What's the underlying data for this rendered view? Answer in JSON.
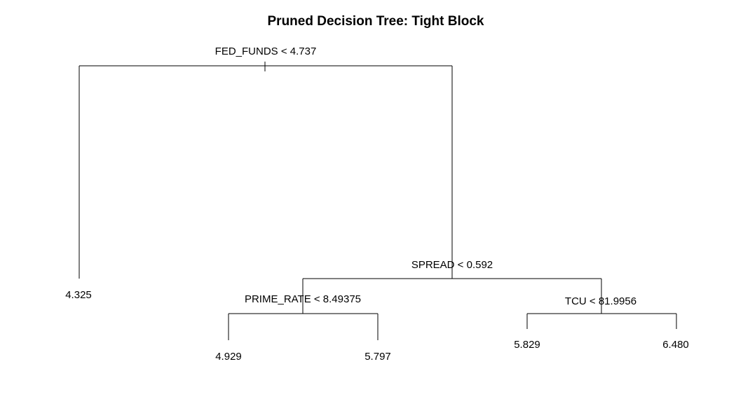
{
  "title": "Pruned Decision Tree: Tight Block",
  "nodes": {
    "root": {
      "label": "FED_FUNDS < 4.737"
    },
    "spread": {
      "label": "SPREAD < 0.592"
    },
    "prime": {
      "label": "PRIME_RATE < 8.49375"
    },
    "tcu": {
      "label": "TCU < 81.9956"
    }
  },
  "leaves": {
    "leaf_1": "4.325",
    "leaf_2": "4.929",
    "leaf_3": "5.797",
    "leaf_4": "5.829",
    "leaf_5": "6.480"
  }
}
